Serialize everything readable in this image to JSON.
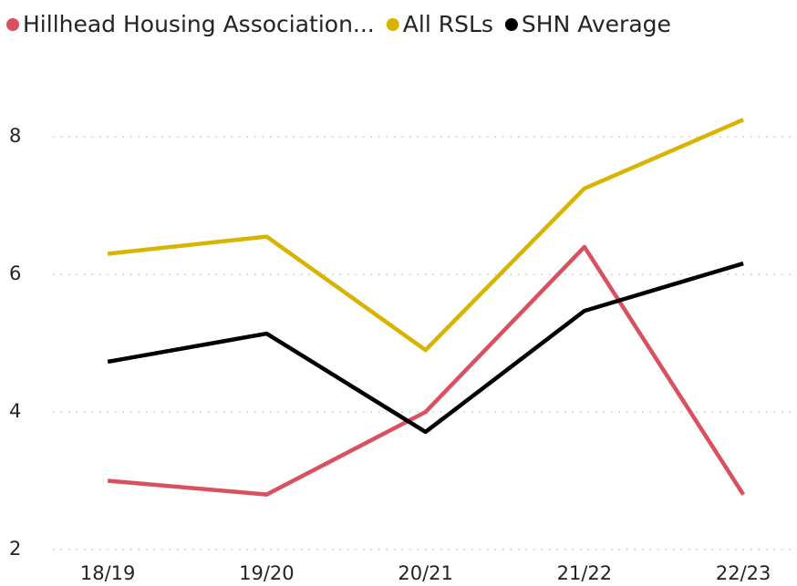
{
  "chart_data": {
    "type": "line",
    "categories": [
      "18/19",
      "19/20",
      "20/21",
      "21/22",
      "22/23"
    ],
    "series": [
      {
        "name": "Hillhead Housing Association...",
        "color": "#d9505e",
        "values": [
          3.0,
          2.8,
          4.0,
          6.4,
          2.8
        ]
      },
      {
        "name": "All RSLs",
        "color": "#d8b400",
        "values": [
          6.3,
          6.55,
          4.9,
          7.25,
          8.25
        ]
      },
      {
        "name": "SHN Average",
        "color": "#000000",
        "values": [
          4.73,
          5.14,
          3.71,
          5.47,
          6.16
        ]
      }
    ],
    "ylim": [
      2,
      8.4
    ],
    "yticks": [
      2,
      4,
      6,
      8
    ],
    "grid": true,
    "legend": "top"
  }
}
